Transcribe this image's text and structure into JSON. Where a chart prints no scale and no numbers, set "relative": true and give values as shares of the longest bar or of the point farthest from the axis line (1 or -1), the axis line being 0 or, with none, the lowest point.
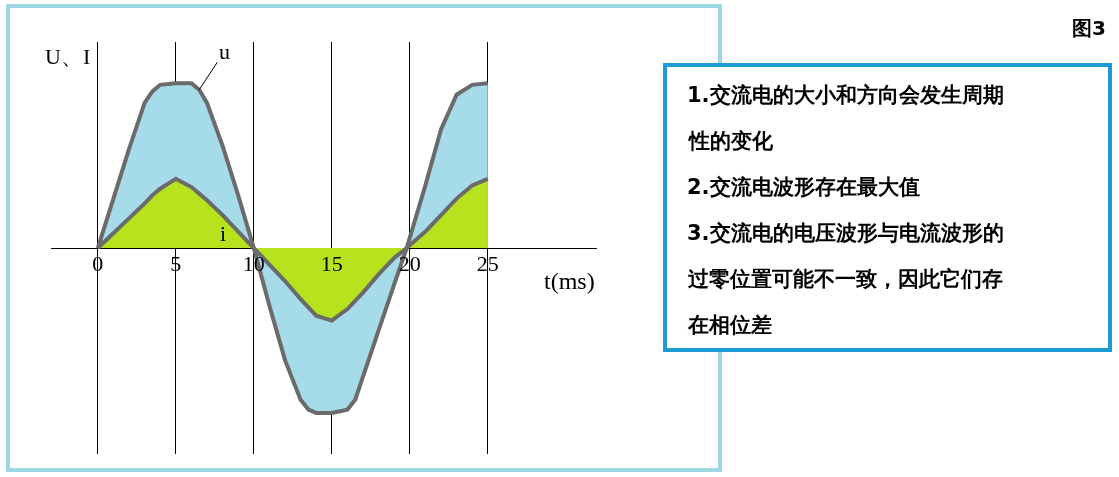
{
  "chart_data": [
    {
      "type": "area",
      "relative": true,
      "xlabel": "t(ms)",
      "ylabel": "U、I",
      "x": [
        0,
        1,
        2,
        3,
        3.5,
        4,
        5,
        6,
        6.5,
        7,
        8,
        9,
        10,
        11,
        12,
        13,
        13.5,
        14,
        15,
        16,
        16.5,
        17,
        18,
        19,
        19.8,
        21,
        22,
        23,
        24,
        25
      ],
      "series": [
        {
          "name": "u",
          "color": "#a6dcea",
          "values": [
            0,
            0.3,
            0.6,
            0.88,
            0.95,
            0.99,
            1,
            1,
            0.96,
            0.88,
            0.62,
            0.32,
            0,
            -0.35,
            -0.68,
            -0.92,
            -0.98,
            -1,
            -1,
            -0.98,
            -0.92,
            -0.78,
            -0.5,
            -0.22,
            0,
            0.38,
            0.72,
            0.93,
            0.99,
            1
          ]
        },
        {
          "name": "i",
          "color": "#b6e31e",
          "values": [
            0,
            0.09,
            0.18,
            0.27,
            0.32,
            0.36,
            0.42,
            0.37,
            0.33,
            0.29,
            0.2,
            0.1,
            0,
            -0.1,
            -0.2,
            -0.31,
            -0.36,
            -0.41,
            -0.44,
            -0.37,
            -0.32,
            -0.27,
            -0.16,
            -0.06,
            0,
            0.1,
            0.2,
            0.3,
            0.38,
            0.42
          ]
        }
      ],
      "xlim": [
        -3,
        32
      ],
      "xticks": [
        0,
        5,
        10,
        15,
        20,
        25
      ],
      "grid": "x"
    },
    {
      "type": "other",
      "title": "图3",
      "annotations": [
        "1.交流电的大小和方向会发生周期性的变化",
        "2.交流电波形存在最大值",
        "3.交流电的电压波形与电流波形的过零位置可能不一致，因此它们存在相位差"
      ]
    }
  ]
}
